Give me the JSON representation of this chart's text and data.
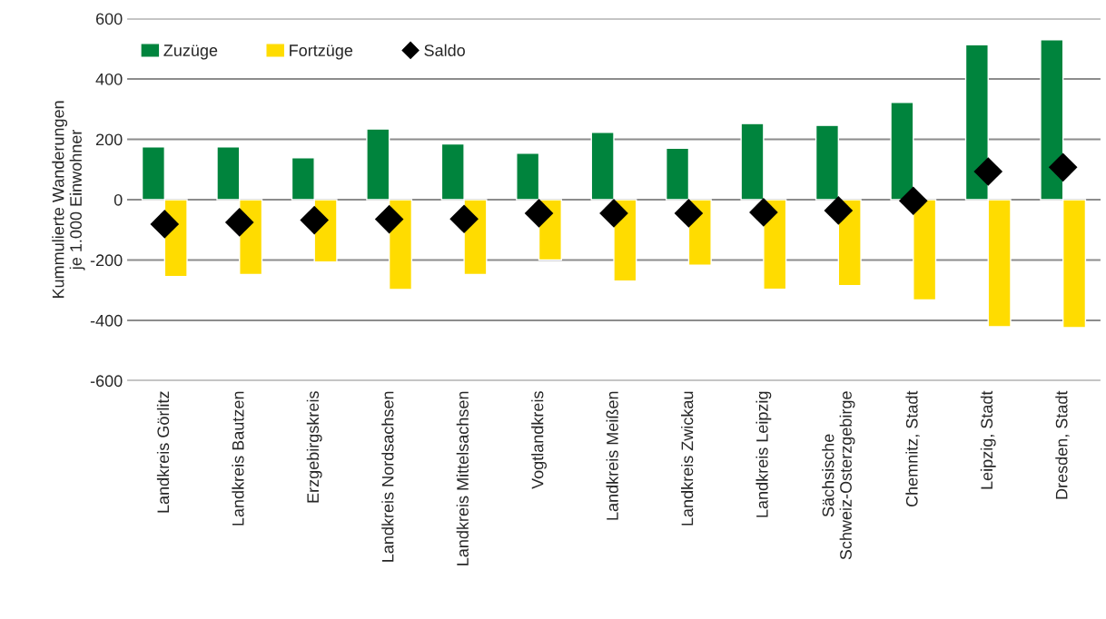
{
  "chart_data": {
    "type": "bar",
    "ylabel": "Kummulierte Wanderungen\nje 1.000 Einwohner",
    "categories": [
      "Landkreis Görlitz",
      "Landkreis Bautzen",
      "Erzgebirgskreis",
      "Landkreis Nordsachsen",
      "Landkreis Mittelsachsen",
      "Vogtlandkreis",
      "Landkreis Meißen",
      "Landkreis Zwickau",
      "Landkreis Leipzig",
      "Sächsische\nSchweiz-Osterzgebirge",
      "Chemnitz, Stadt",
      "Leipzig, Stadt",
      "Dresden, Stadt"
    ],
    "series": [
      {
        "name": "Zuzüge",
        "color": "#00843d",
        "values": [
          175,
          175,
          139,
          234,
          185,
          154,
          223,
          170,
          252,
          246,
          322,
          513,
          530
        ]
      },
      {
        "name": "Fortzüge",
        "color": "#ffdc00",
        "values": [
          -255,
          -248,
          -207,
          -298,
          -248,
          -200,
          -270,
          -217,
          -297,
          -285,
          -332,
          -421,
          -424
        ]
      },
      {
        "name": "Saldo",
        "type": "scatter",
        "color": "#000000",
        "marker": "diamond",
        "values": [
          -81,
          -75,
          -68,
          -65,
          -64,
          -45,
          -45,
          -45,
          -42,
          -36,
          -4,
          93,
          107
        ]
      }
    ],
    "ylim": [
      -600,
      600
    ],
    "yticks": [
      -600,
      -400,
      -200,
      0,
      200,
      400,
      600
    ],
    "grid": "y",
    "legend": "top left"
  }
}
